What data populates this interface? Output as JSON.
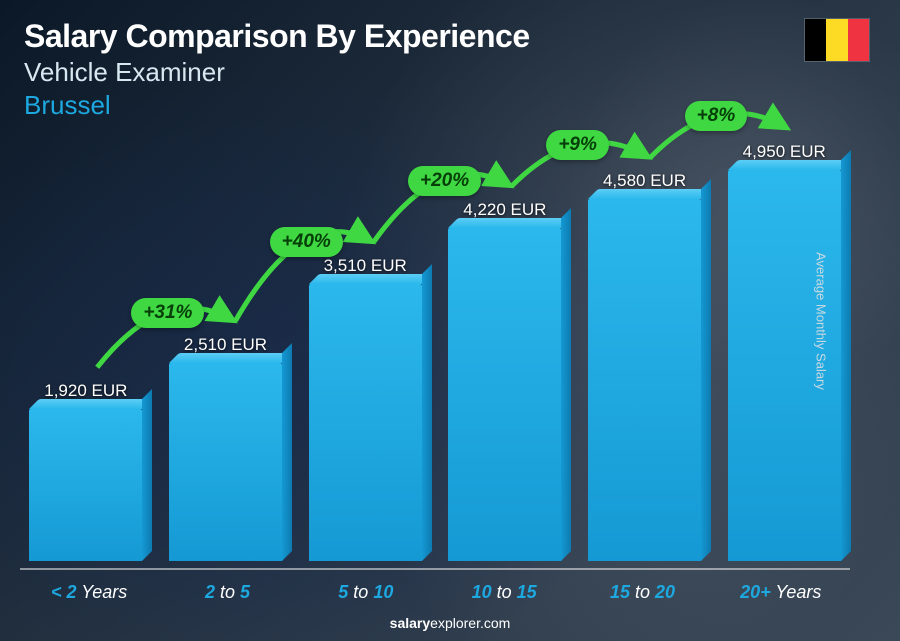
{
  "title": "Salary Comparison By Experience",
  "subtitle": "Vehicle Examiner",
  "location": "Brussel",
  "y_axis_label": "Average Monthly Salary",
  "footer_brand_bold": "salary",
  "footer_brand_rest": "explorer.com",
  "flag": {
    "c1": "#000000",
    "c2": "#fdda24",
    "c3": "#ef3340"
  },
  "chart": {
    "type": "bar",
    "max_value": 4950,
    "bar_color_top": "#2bb8ec",
    "bar_color_bottom": "#1599d4",
    "grid_color": "rgba(255,255,255,0.5)",
    "background": "dark-photo-garage",
    "bars": [
      {
        "label_pre": "< 2",
        "label_post": " Years",
        "value": 1920,
        "value_label": "1,920 EUR"
      },
      {
        "label_pre": "2",
        "label_mid": " to ",
        "label_post": "5",
        "value": 2510,
        "value_label": "2,510 EUR"
      },
      {
        "label_pre": "5",
        "label_mid": " to ",
        "label_post": "10",
        "value": 3510,
        "value_label": "3,510 EUR"
      },
      {
        "label_pre": "10",
        "label_mid": " to ",
        "label_post": "15",
        "value": 4220,
        "value_label": "4,220 EUR"
      },
      {
        "label_pre": "15",
        "label_mid": " to ",
        "label_post": "20",
        "value": 4580,
        "value_label": "4,580 EUR"
      },
      {
        "label_pre": "20+",
        "label_post": " Years",
        "value": 4950,
        "value_label": "4,950 EUR"
      }
    ],
    "changes": [
      {
        "label": "+31%",
        "from": 0,
        "to": 1
      },
      {
        "label": "+40%",
        "from": 1,
        "to": 2
      },
      {
        "label": "+20%",
        "from": 2,
        "to": 3
      },
      {
        "label": "+9%",
        "from": 3,
        "to": 4
      },
      {
        "label": "+8%",
        "from": 4,
        "to": 5
      }
    ],
    "arc_color": "#3fd843",
    "badge_text_color": "#064008",
    "title_fontsize": 32,
    "label_fontsize": 18,
    "value_fontsize": 17
  }
}
